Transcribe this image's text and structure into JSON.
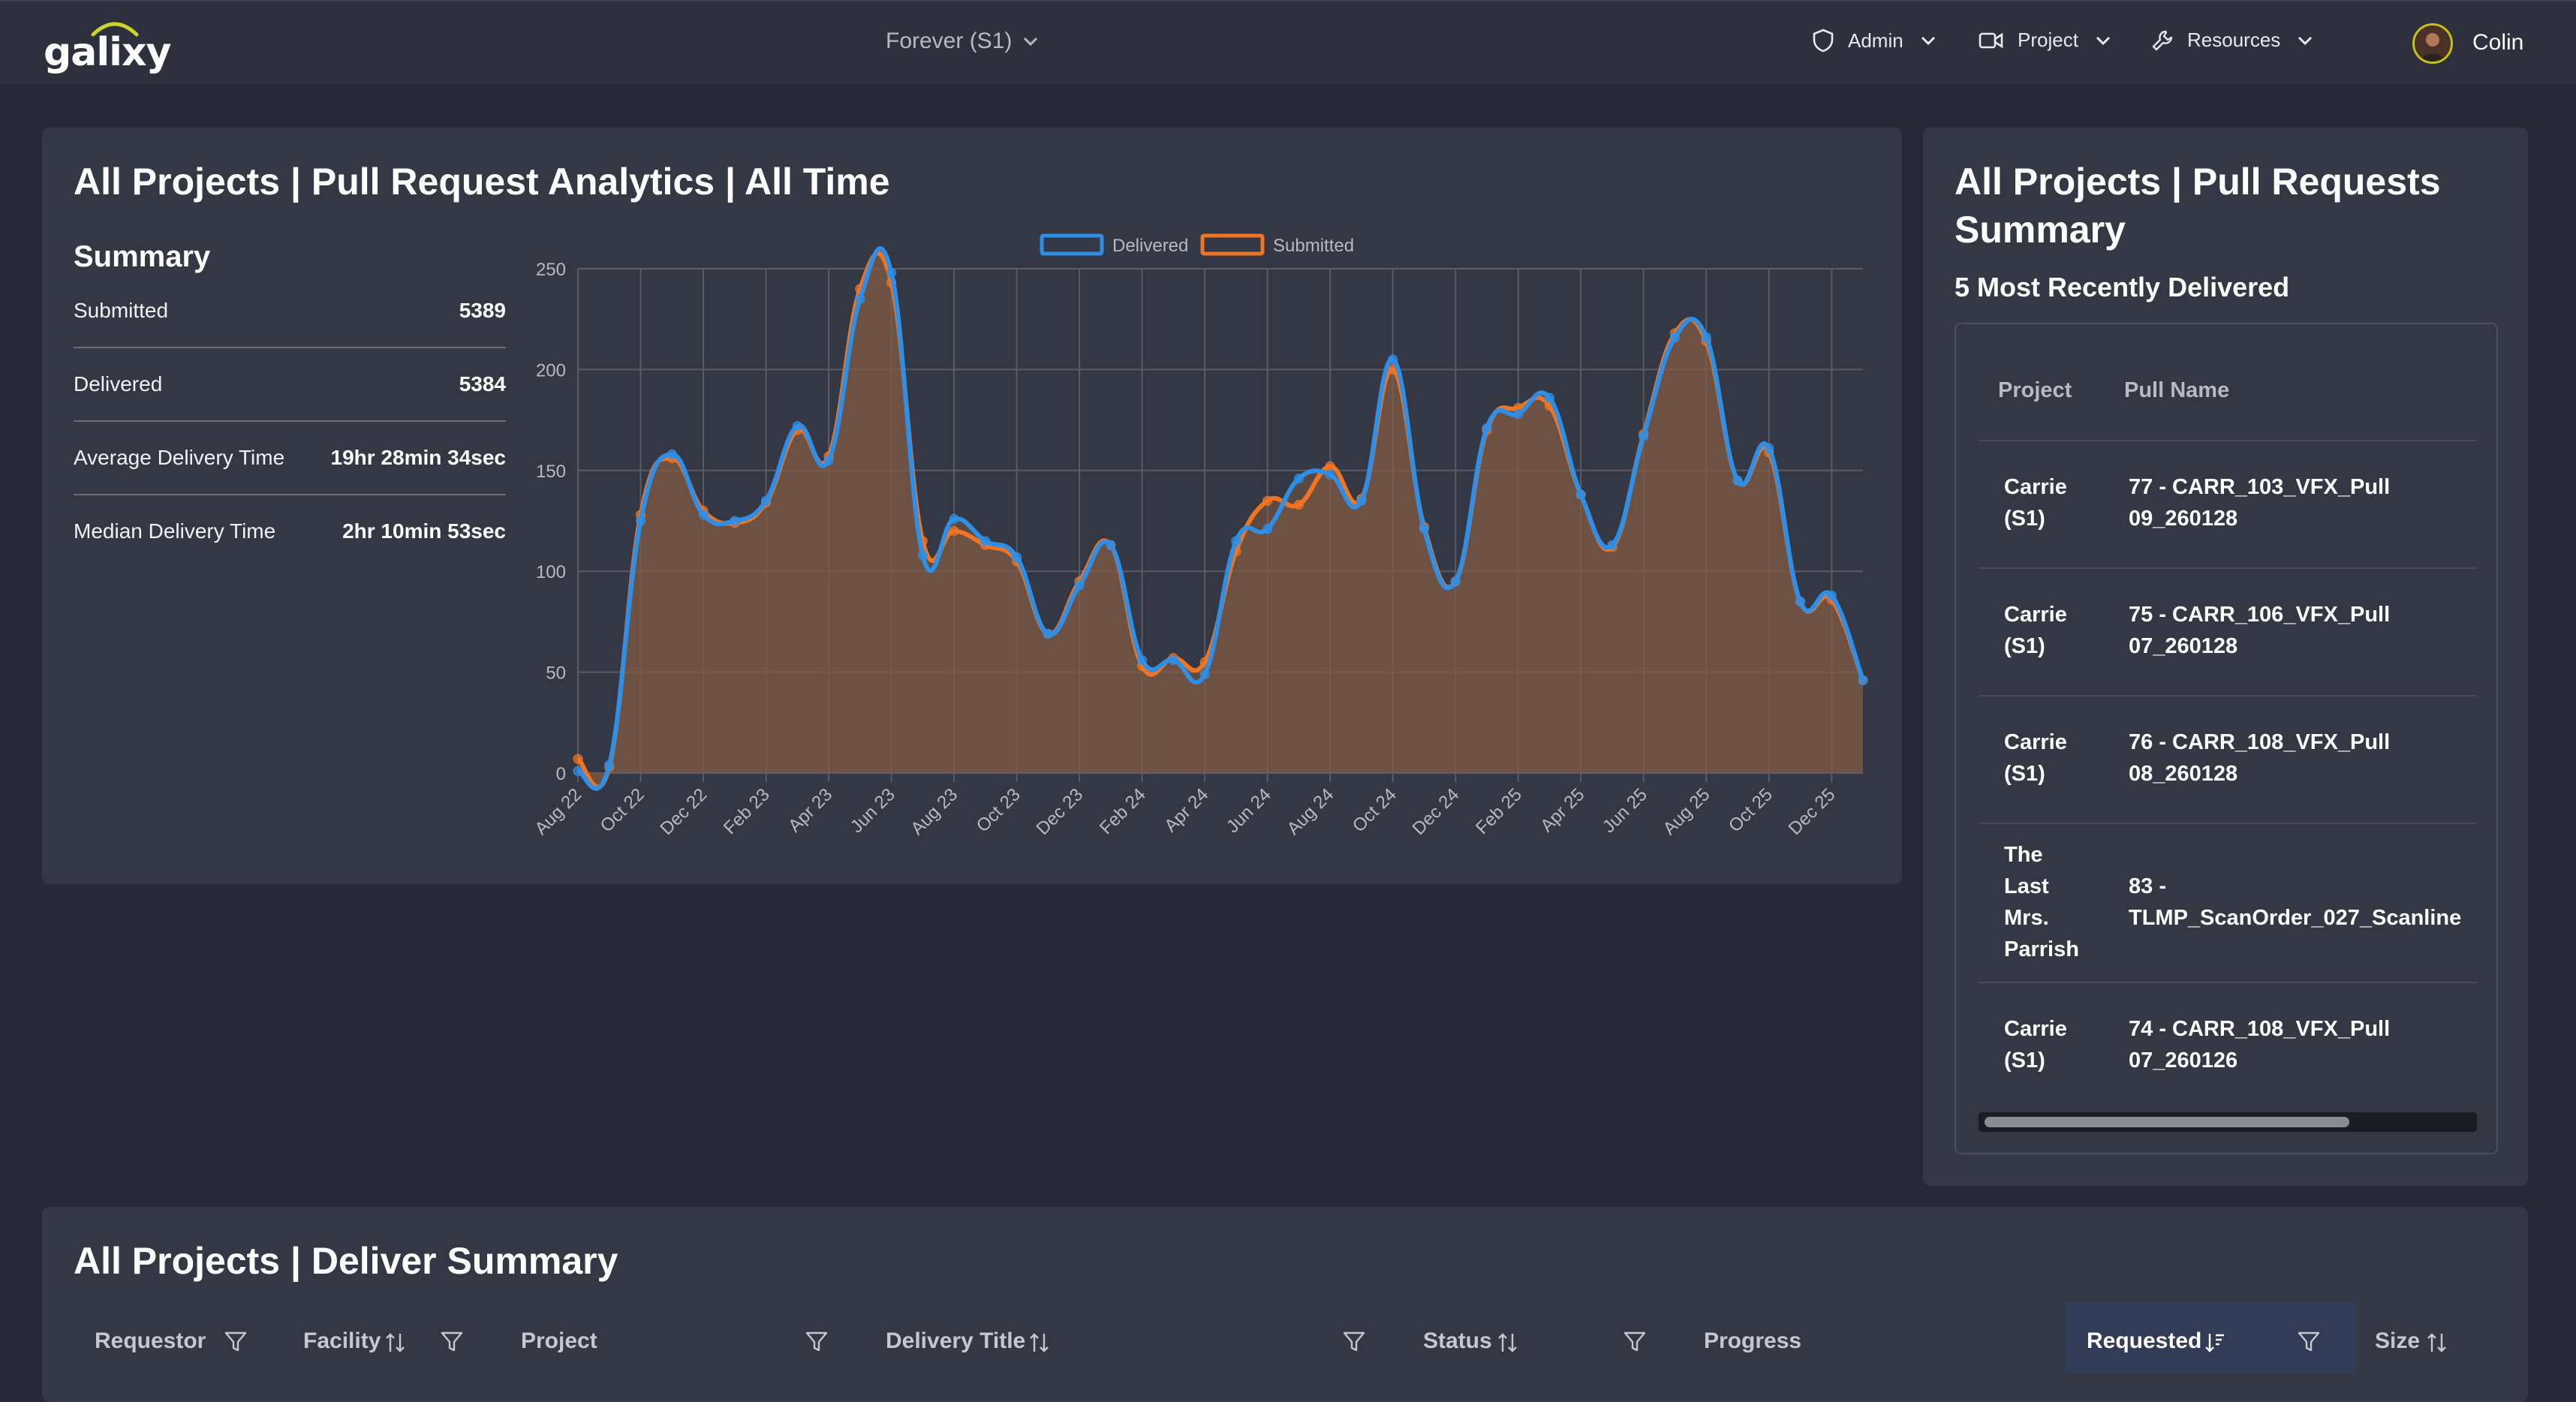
{
  "nav": {
    "logo_text": "galixy",
    "project_select": "Forever (S1)",
    "menu": [
      {
        "label": "Admin",
        "icon": "shield-icon"
      },
      {
        "label": "Project",
        "icon": "video-camera-icon"
      },
      {
        "label": "Resources",
        "icon": "wrench-icon"
      }
    ],
    "user": "Colin"
  },
  "analytics": {
    "title": "All Projects | Pull Request Analytics | All Time",
    "summary_title": "Summary",
    "rows": [
      {
        "label": "Submitted",
        "value": "5389"
      },
      {
        "label": "Delivered",
        "value": "5384"
      },
      {
        "label": "Average Delivery Time",
        "value": "19hr 28min 34sec"
      },
      {
        "label": "Median Delivery Time",
        "value": "2hr 10min 53sec"
      }
    ]
  },
  "chart_data": {
    "type": "line",
    "title": "",
    "xlabel": "",
    "ylabel": "",
    "ylim": [
      0,
      250
    ],
    "yticks": [
      0,
      50,
      100,
      150,
      200,
      250
    ],
    "grid": true,
    "legend_position": "top",
    "x": [
      "Aug 22",
      "Sep 22",
      "Oct 22",
      "Nov 22",
      "Dec 22",
      "Jan 23",
      "Feb 23",
      "Mar 23",
      "Apr 23",
      "May 23",
      "Jun 23",
      "Jul 23",
      "Aug 23",
      "Sep 23",
      "Oct 23",
      "Nov 23",
      "Dec 23",
      "Jan 24",
      "Feb 24",
      "Mar 24",
      "Apr 24",
      "May 24",
      "Jun 24",
      "Jul 24",
      "Aug 24",
      "Sep 24",
      "Oct 24",
      "Nov 24",
      "Dec 24",
      "Jan 25",
      "Feb 25",
      "Mar 25",
      "Apr 25",
      "May 25",
      "Jun 25",
      "Jul 25",
      "Aug 25",
      "Sep 25",
      "Oct 25",
      "Nov 25",
      "Dec 25",
      "Jan 26"
    ],
    "xtick_labels": [
      "Aug 22",
      "Oct 22",
      "Dec 22",
      "Feb 23",
      "Apr 23",
      "Jun 23",
      "Aug 23",
      "Oct 23",
      "Dec 23",
      "Feb 24",
      "Apr 24",
      "Jun 24",
      "Aug 24",
      "Oct 24",
      "Dec 24",
      "Feb 25",
      "Apr 25",
      "Jun 25",
      "Aug 25",
      "Oct 25",
      "Dec 25"
    ],
    "series": [
      {
        "name": "Delivered",
        "color": "#2f8ee6",
        "values": [
          1,
          4,
          125,
          158,
          128,
          125,
          135,
          172,
          155,
          235,
          248,
          108,
          126,
          115,
          107,
          69,
          93,
          113,
          56,
          56,
          49,
          115,
          121,
          146,
          148,
          135,
          205,
          121,
          95,
          171,
          178,
          186,
          138,
          113,
          167,
          216,
          216,
          145,
          161,
          85,
          88,
          46
        ]
      },
      {
        "name": "Submitted",
        "color": "#ef7524",
        "values": [
          7,
          3,
          128,
          156,
          130,
          124,
          134,
          170,
          157,
          240,
          243,
          115,
          120,
          113,
          105,
          69,
          95,
          113,
          53,
          57,
          55,
          110,
          135,
          133,
          152,
          136,
          200,
          122,
          95,
          170,
          181,
          182,
          138,
          112,
          168,
          218,
          214,
          145,
          159,
          85,
          86,
          46
        ]
      }
    ]
  },
  "summary_panel": {
    "title_line1": "All Projects | Pull Requests",
    "title_line2": "Summary",
    "subtitle": "5 Most Recently Delivered",
    "headers": {
      "project": "Project",
      "pull_name": "Pull Name"
    },
    "rows": [
      {
        "project": [
          "Carrie",
          "(S1)"
        ],
        "pull": [
          "77 - CARR_103_VFX_Pull",
          "09_260128"
        ]
      },
      {
        "project": [
          "Carrie",
          "(S1)"
        ],
        "pull": [
          "75 - CARR_106_VFX_Pull",
          "07_260128"
        ]
      },
      {
        "project": [
          "Carrie",
          "(S1)"
        ],
        "pull": [
          "76 - CARR_108_VFX_Pull",
          "08_260128"
        ]
      },
      {
        "project": [
          "The",
          "Last",
          "Mrs.",
          "Parrish"
        ],
        "pull": [
          "83 -",
          "TLMP_ScanOrder_027_Scanline"
        ]
      },
      {
        "project": [
          "Carrie",
          "(S1)"
        ],
        "pull": [
          "74 - CARR_108_VFX_Pull",
          "07_260126"
        ]
      }
    ]
  },
  "deliver": {
    "title": "All Projects | Deliver Summary",
    "columns": [
      {
        "label": "Requestor",
        "filter": true,
        "sort": false
      },
      {
        "label": "Facility",
        "filter": true,
        "sort": true
      },
      {
        "label": "Project",
        "filter": true,
        "sort": false
      },
      {
        "label": "Delivery Title",
        "filter": true,
        "sort": true
      },
      {
        "label": "Status",
        "filter": true,
        "sort": true
      },
      {
        "label": "Progress",
        "filter": false,
        "sort": false
      },
      {
        "label": "Requested",
        "filter": true,
        "sort": true
      },
      {
        "label": "Size",
        "filter": false,
        "sort": true
      }
    ]
  }
}
